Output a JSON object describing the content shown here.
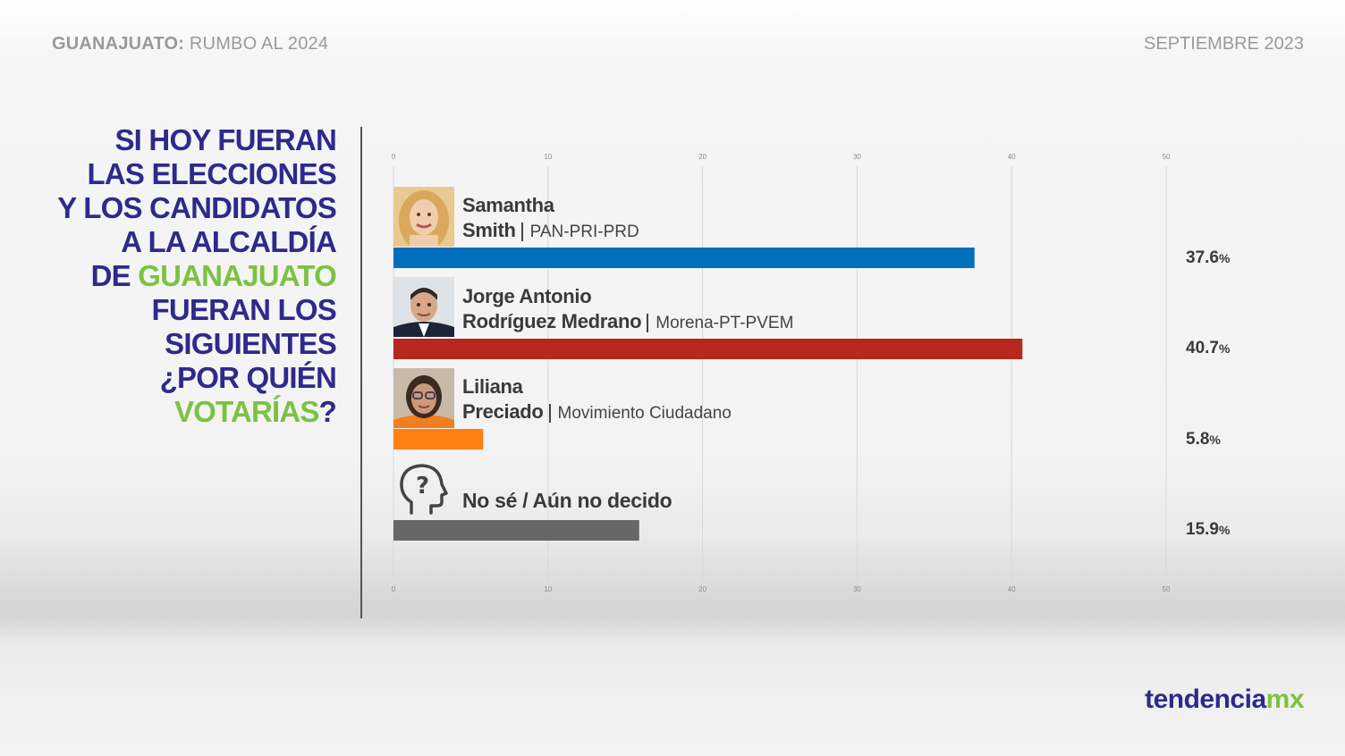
{
  "header": {
    "region": "GUANAJUATO:",
    "subtitle": "RUMBO AL 2024",
    "date": "SEPTIEMBRE 2023"
  },
  "question": {
    "line1": "SI HOY FUERAN",
    "line2": "LAS ELECCIONES",
    "line3": "Y LOS CANDIDATOS",
    "line4": "A LA ALCALDÍA",
    "line5_a": "DE",
    "line5_b": "GUANAJUATO",
    "line6": "FUERAN LOS",
    "line7": "SIGUIENTES",
    "line8": "¿POR QUIÉN",
    "line9_a": "VOTARÍAS",
    "line9_b": "?"
  },
  "candidates": [
    {
      "first": "Samantha",
      "last": "Smith",
      "party": "PAN-PRI-PRD",
      "pct": "37.6",
      "unit": "%"
    },
    {
      "first": "Jorge Antonio",
      "last": "Rodríguez Medrano",
      "party": "Morena-PT-PVEM",
      "pct": "40.7",
      "unit": "%"
    },
    {
      "first": "Liliana",
      "last": "Preciado",
      "party": "Movimiento Ciudadano",
      "pct": "5.8",
      "unit": "%"
    },
    {
      "label": "No sé / Aún no decido",
      "pct": "15.9",
      "unit": "%"
    }
  ],
  "icons": {
    "undecided": "head-question-icon"
  },
  "colors": {
    "pan_pri_prd": "#0070bd",
    "morena": "#b5271f",
    "mc": "#ff7f11",
    "undecided": "#676767",
    "brand_blue": "#2e2a8c",
    "brand_green": "#7cc242"
  },
  "chart_data": {
    "type": "bar",
    "orientation": "horizontal",
    "categories": [
      "Samantha Smith",
      "Jorge Antonio Rodríguez Medrano",
      "Liliana Preciado",
      "No sé / Aún no decido"
    ],
    "values": [
      37.6,
      40.7,
      5.8,
      15.9
    ],
    "colors": [
      "#0070bd",
      "#b5271f",
      "#ff7f11",
      "#676767"
    ],
    "xlim": [
      0,
      50
    ],
    "ticks": [
      0,
      10,
      20,
      30,
      40,
      50
    ],
    "grid": true
  },
  "brand": {
    "name": "tendencia",
    "suffix": "mx"
  }
}
